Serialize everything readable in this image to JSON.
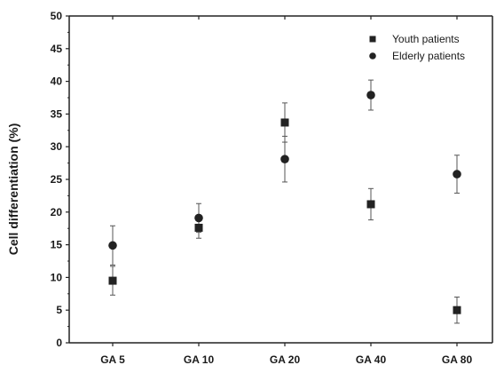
{
  "chart_data": {
    "type": "scatter",
    "title": "",
    "xlabel": "",
    "ylabel": "Cell differentiation (%)",
    "categories": [
      "GA 5",
      "GA 10",
      "GA 20",
      "GA 40",
      "GA 80"
    ],
    "ylim": [
      0,
      50
    ],
    "yticks": [
      0,
      5,
      10,
      15,
      20,
      25,
      30,
      35,
      40,
      45,
      50
    ],
    "grid": false,
    "legend_position": "top-right",
    "series": [
      {
        "name": "Youth patients",
        "marker": "square",
        "color": "#222222",
        "values": [
          9.5,
          17.6,
          33.7,
          21.2,
          5.0
        ],
        "errors": [
          2.2,
          1.6,
          3.0,
          2.4,
          2.0
        ]
      },
      {
        "name": "Elderly patients",
        "marker": "circle",
        "color": "#222222",
        "values": [
          14.9,
          19.1,
          28.1,
          37.9,
          25.8
        ],
        "errors": [
          3.0,
          2.2,
          3.5,
          2.3,
          2.9
        ]
      }
    ]
  }
}
